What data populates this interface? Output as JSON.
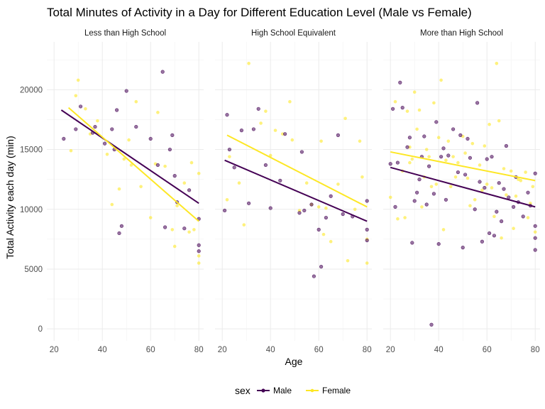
{
  "chart_data": {
    "type": "scatter",
    "title": "Total Minutes of Activity in a Day for Different Education Level (Male vs Female)",
    "xlabel": "Age",
    "ylabel": "Total Activity each day (min)",
    "xlim": [
      17,
      82
    ],
    "ylim": [
      -1000,
      24000
    ],
    "x_ticks": [
      20,
      40,
      60,
      80
    ],
    "y_ticks": [
      0,
      5000,
      10000,
      15000,
      20000
    ],
    "y_tick_labels": [
      "0",
      "5000",
      "10000",
      "15000",
      "20000"
    ],
    "grid": true,
    "legend": {
      "title": "sex",
      "position": "bottom",
      "entries": [
        "Male",
        "Female"
      ]
    },
    "colors": {
      "Male": "#440154",
      "Female": "#FDE725"
    },
    "panels": [
      {
        "label": "Less than High School",
        "series": [
          {
            "name": "Male",
            "points": [
              [
                24,
                15900
              ],
              [
                29,
                16700
              ],
              [
                31,
                18600
              ],
              [
                36,
                16400
              ],
              [
                37,
                16900
              ],
              [
                41,
                15500
              ],
              [
                44,
                16700
              ],
              [
                45,
                15000
              ],
              [
                46,
                18300
              ],
              [
                47,
                8000
              ],
              [
                48,
                8600
              ],
              [
                50,
                19900
              ],
              [
                54,
                16900
              ],
              [
                60,
                15900
              ],
              [
                63,
                13700
              ],
              [
                65,
                21500
              ],
              [
                66,
                8500
              ],
              [
                68,
                15000
              ],
              [
                69,
                16200
              ],
              [
                70,
                12800
              ],
              [
                71,
                10600
              ],
              [
                74,
                8400
              ],
              [
                76,
                11600
              ],
              [
                80,
                9200
              ],
              [
                80,
                7000
              ],
              [
                80,
                6500
              ]
            ],
            "fit": [
              [
                23,
                18300
              ],
              [
                80,
                10500
              ]
            ]
          },
          {
            "name": "Female",
            "points": [
              [
                27,
                14900
              ],
              [
                29,
                19500
              ],
              [
                30,
                20800
              ],
              [
                33,
                18400
              ],
              [
                35,
                16300
              ],
              [
                38,
                17400
              ],
              [
                42,
                14600
              ],
              [
                44,
                10400
              ],
              [
                47,
                11700
              ],
              [
                49,
                14200
              ],
              [
                51,
                15800
              ],
              [
                52,
                13700
              ],
              [
                54,
                19000
              ],
              [
                56,
                11900
              ],
              [
                60,
                9300
              ],
              [
                62,
                13800
              ],
              [
                63,
                18100
              ],
              [
                66,
                13600
              ],
              [
                69,
                8300
              ],
              [
                70,
                6900
              ],
              [
                71,
                10300
              ],
              [
                74,
                12200
              ],
              [
                76,
                8100
              ],
              [
                77,
                13900
              ],
              [
                78,
                8300
              ],
              [
                80,
                13000
              ],
              [
                80,
                6100
              ],
              [
                80,
                5500
              ]
            ],
            "fit": [
              [
                26,
                18500
              ],
              [
                80,
                9000
              ]
            ]
          }
        ]
      },
      {
        "label": "High School Equivalent",
        "series": [
          {
            "name": "Male",
            "points": [
              [
                21,
                9900
              ],
              [
                22,
                17900
              ],
              [
                23,
                15000
              ],
              [
                25,
                13500
              ],
              [
                28,
                16600
              ],
              [
                31,
                10500
              ],
              [
                33,
                16700
              ],
              [
                35,
                18400
              ],
              [
                38,
                13700
              ],
              [
                40,
                10100
              ],
              [
                44,
                12400
              ],
              [
                46,
                16300
              ],
              [
                52,
                9700
              ],
              [
                53,
                14800
              ],
              [
                54,
                9900
              ],
              [
                57,
                10400
              ],
              [
                58,
                4400
              ],
              [
                60,
                8300
              ],
              [
                61,
                5200
              ],
              [
                63,
                9300
              ],
              [
                65,
                11100
              ],
              [
                68,
                16200
              ],
              [
                70,
                9600
              ],
              [
                74,
                9400
              ],
              [
                80,
                10700
              ],
              [
                80,
                8300
              ],
              [
                80,
                7400
              ]
            ],
            "fit": [
              [
                21,
                14100
              ],
              [
                80,
                9000
              ]
            ]
          },
          {
            "name": "Female",
            "points": [
              [
                22,
                10800
              ],
              [
                23,
                14400
              ],
              [
                27,
                12200
              ],
              [
                29,
                8700
              ],
              [
                31,
                22200
              ],
              [
                36,
                17200
              ],
              [
                38,
                18200
              ],
              [
                40,
                14500
              ],
              [
                42,
                16600
              ],
              [
                45,
                16300
              ],
              [
                48,
                19000
              ],
              [
                49,
                15800
              ],
              [
                52,
                9900
              ],
              [
                55,
                12200
              ],
              [
                57,
                10400
              ],
              [
                60,
                10200
              ],
              [
                61,
                15700
              ],
              [
                62,
                7900
              ],
              [
                63,
                10100
              ],
              [
                65,
                7300
              ],
              [
                68,
                12100
              ],
              [
                71,
                17600
              ],
              [
                72,
                5700
              ],
              [
                75,
                10000
              ],
              [
                77,
                15700
              ],
              [
                78,
                12700
              ],
              [
                80,
                7500
              ],
              [
                80,
                5500
              ]
            ],
            "fit": [
              [
                22,
                16200
              ],
              [
                80,
                10200
              ]
            ]
          }
        ]
      },
      {
        "label": "More than High School",
        "series": [
          {
            "name": "Male",
            "points": [
              [
                20,
                13800
              ],
              [
                21,
                18400
              ],
              [
                22,
                10200
              ],
              [
                23,
                13900
              ],
              [
                24,
                20600
              ],
              [
                25,
                18500
              ],
              [
                27,
                15200
              ],
              [
                28,
                16000
              ],
              [
                29,
                7200
              ],
              [
                30,
                10700
              ],
              [
                31,
                11400
              ],
              [
                32,
                12500
              ],
              [
                33,
                14400
              ],
              [
                34,
                16100
              ],
              [
                35,
                10400
              ],
              [
                36,
                13600
              ],
              [
                37,
                350
              ],
              [
                38,
                11300
              ],
              [
                39,
                17300
              ],
              [
                40,
                7100
              ],
              [
                41,
                14400
              ],
              [
                42,
                15100
              ],
              [
                43,
                10800
              ],
              [
                44,
                14500
              ],
              [
                46,
                16700
              ],
              [
                48,
                13100
              ],
              [
                49,
                16200
              ],
              [
                50,
                6800
              ],
              [
                51,
                12900
              ],
              [
                52,
                15900
              ],
              [
                53,
                14300
              ],
              [
                55,
                10000
              ],
              [
                56,
                18900
              ],
              [
                57,
                12300
              ],
              [
                58,
                7300
              ],
              [
                59,
                11800
              ],
              [
                60,
                14200
              ],
              [
                61,
                8000
              ],
              [
                62,
                14400
              ],
              [
                63,
                7800
              ],
              [
                64,
                9800
              ],
              [
                65,
                12200
              ],
              [
                66,
                9000
              ],
              [
                67,
                11700
              ],
              [
                68,
                15300
              ],
              [
                69,
                11000
              ],
              [
                71,
                10200
              ],
              [
                72,
                12700
              ],
              [
                73,
                10600
              ],
              [
                75,
                9400
              ],
              [
                77,
                11400
              ],
              [
                78,
                10300
              ],
              [
                80,
                13000
              ],
              [
                80,
                8600
              ],
              [
                80,
                7600
              ],
              [
                80,
                6600
              ]
            ],
            "fit": [
              [
                20,
                13500
              ],
              [
                80,
                10200
              ]
            ]
          },
          {
            "name": "Female",
            "points": [
              [
                20,
                11000
              ],
              [
                22,
                19000
              ],
              [
                23,
                9200
              ],
              [
                25,
                13200
              ],
              [
                26,
                9300
              ],
              [
                27,
                18200
              ],
              [
                28,
                15200
              ],
              [
                28,
                13900
              ],
              [
                29,
                14200
              ],
              [
                30,
                19800
              ],
              [
                31,
                16700
              ],
              [
                32,
                18300
              ],
              [
                33,
                10200
              ],
              [
                34,
                12700
              ],
              [
                35,
                15000
              ],
              [
                36,
                14400
              ],
              [
                37,
                11900
              ],
              [
                38,
                18900
              ],
              [
                39,
                12100
              ],
              [
                40,
                16000
              ],
              [
                41,
                20800
              ],
              [
                42,
                8300
              ],
              [
                43,
                14100
              ],
              [
                44,
                15700
              ],
              [
                45,
                11900
              ],
              [
                46,
                14400
              ],
              [
                47,
                12700
              ],
              [
                48,
                13900
              ],
              [
                50,
                16100
              ],
              [
                51,
                14700
              ],
              [
                52,
                12600
              ],
              [
                53,
                10300
              ],
              [
                54,
                15500
              ],
              [
                55,
                10800
              ],
              [
                57,
                13700
              ],
              [
                58,
                11600
              ],
              [
                59,
                15300
              ],
              [
                60,
                12100
              ],
              [
                61,
                17100
              ],
              [
                62,
                11800
              ],
              [
                63,
                9400
              ],
              [
                64,
                22200
              ],
              [
                65,
                17400
              ],
              [
                66,
                7600
              ],
              [
                67,
                13400
              ],
              [
                68,
                11200
              ],
              [
                70,
                13200
              ],
              [
                71,
                8400
              ],
              [
                72,
                11100
              ],
              [
                73,
                12500
              ],
              [
                74,
                12400
              ],
              [
                76,
                13100
              ],
              [
                77,
                9300
              ],
              [
                78,
                10500
              ],
              [
                79,
                11900
              ],
              [
                80,
                8100
              ]
            ],
            "fit": [
              [
                20,
                14800
              ],
              [
                80,
                12400
              ]
            ]
          }
        ]
      }
    ]
  }
}
